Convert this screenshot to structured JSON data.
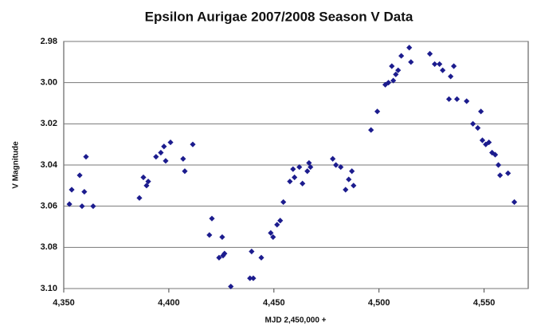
{
  "chart_data": {
    "type": "scatter",
    "title": "Epsilon Aurigae 2007/2008 Season V Data",
    "x_label": "MJD 2,450,000 +",
    "y_label": "V Magnitude",
    "color": "#1c1c8e",
    "grid": true,
    "y_inverted": true,
    "xlim": [
      4350,
      4571
    ],
    "ylim": [
      2.98,
      3.1
    ],
    "xticks": [
      {
        "value": 4350,
        "label": "4,350"
      },
      {
        "value": 4400,
        "label": "4,400"
      },
      {
        "value": 4450,
        "label": "4,450"
      },
      {
        "value": 4500,
        "label": "4,500"
      },
      {
        "value": 4550,
        "label": "4,550"
      }
    ],
    "yticks": [
      2.98,
      {
        "value": 3,
        "label": "3.00"
      },
      3.02,
      3.04,
      3.06,
      3.08,
      {
        "value": 3.1,
        "label": "3.10"
      }
    ],
    "series": [
      {
        "name": "V",
        "color": "#1c1c8e",
        "x": [
          4352.7,
          4353.8,
          4357.6,
          4358.7,
          4359.8,
          4360.6,
          4364.0,
          4386.0,
          4387.9,
          4389.4,
          4390.2,
          4393.9,
          4396.2,
          4397.7,
          4398.5,
          4400.8,
          4406.8,
          4407.6,
          4411.4,
          4419.3,
          4420.5,
          4423.9,
          4425.4,
          4425.8,
          4426.5,
          4429.5,
          4438.6,
          4439.4,
          4440.2,
          4444.0,
          4448.5,
          4449.6,
          4451.5,
          4453.0,
          4454.5,
          4457.6,
          4459.1,
          4459.8,
          4462.1,
          4463.6,
          4465.9,
          4466.7,
          4467.4,
          4478.0,
          4479.5,
          4481.8,
          4484.1,
          4485.6,
          4487.1,
          4487.9,
          4496.2,
          4499.2,
          4503.0,
          4504.5,
          4506.1,
          4506.8,
          4508.0,
          4509.1,
          4510.6,
          4514.4,
          4515.2,
          4524.2,
          4526.5,
          4528.8,
          4530.3,
          4533.3,
          4534.1,
          4535.6,
          4537.1,
          4541.7,
          4544.7,
          4547.0,
          4548.5,
          4549.2,
          4550.8,
          4552.3,
          4553.8,
          4555.3,
          4556.8,
          4557.6,
          4561.4,
          4564.4
        ],
        "values": [
          3.059,
          3.052,
          3.045,
          3.06,
          3.053,
          3.036,
          3.06,
          3.056,
          3.046,
          3.05,
          3.048,
          3.036,
          3.034,
          3.031,
          3.038,
          3.029,
          3.037,
          3.043,
          3.03,
          3.074,
          3.066,
          3.085,
          3.075,
          3.084,
          3.083,
          3.099,
          3.095,
          3.082,
          3.095,
          3.085,
          3.073,
          3.075,
          3.069,
          3.067,
          3.058,
          3.048,
          3.042,
          3.046,
          3.041,
          3.049,
          3.043,
          3.039,
          3.041,
          3.037,
          3.04,
          3.041,
          3.052,
          3.047,
          3.043,
          3.05,
          3.023,
          3.014,
          3.001,
          3.0,
          2.992,
          2.999,
          2.996,
          2.994,
          2.987,
          2.983,
          2.99,
          2.986,
          2.991,
          2.991,
          2.994,
          3.008,
          2.997,
          2.992,
          3.008,
          3.009,
          3.02,
          3.022,
          3.014,
          3.028,
          3.03,
          3.029,
          3.034,
          3.035,
          3.04,
          3.045,
          3.044,
          3.058
        ]
      }
    ]
  }
}
